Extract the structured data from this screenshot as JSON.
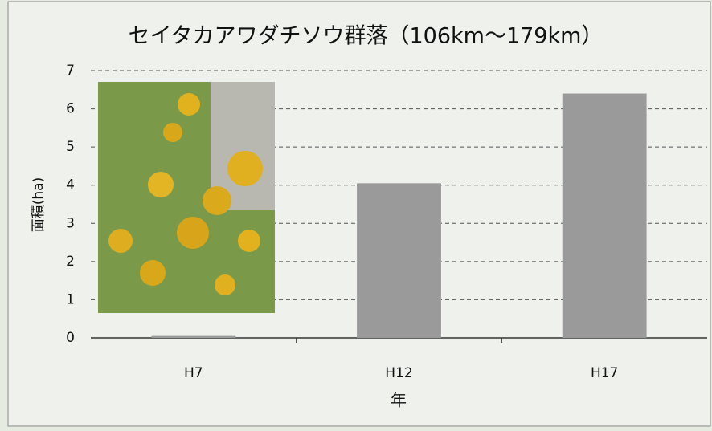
{
  "chart_data": {
    "type": "bar",
    "title": "セイタカアワダチソウ群落（106km～179km）",
    "categories": [
      "H7",
      "H12",
      "H17"
    ],
    "values": [
      0.05,
      4.05,
      6.4
    ],
    "color": "#9a9a9a",
    "ylim": [
      0,
      7
    ],
    "yticks": [
      0,
      1,
      2,
      3,
      4,
      5,
      6,
      7
    ],
    "grid": true,
    "y_label": "面積(ha)",
    "x_label": "年"
  }
}
